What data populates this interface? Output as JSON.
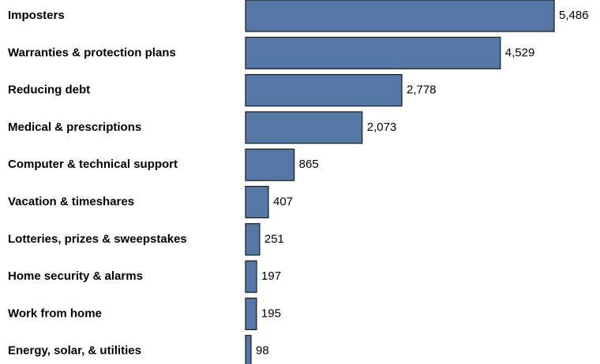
{
  "chart_data": {
    "type": "bar",
    "orientation": "horizontal",
    "categories": [
      "Imposters",
      "Warranties & protection plans",
      "Reducing debt",
      "Medical & prescriptions",
      "Computer & technical support",
      "Vacation & timeshares",
      "Lotteries, prizes & sweepstakes",
      "Home security & alarms",
      "Work from home",
      "Energy, solar, & utilities"
    ],
    "values": [
      5486,
      4529,
      2778,
      2073,
      865,
      407,
      251,
      197,
      195,
      98
    ],
    "value_labels": [
      "5,486",
      "4,529",
      "2,778",
      "2,073",
      "865",
      "407",
      "251",
      "197",
      "195",
      "98"
    ],
    "color": "#5577a6"
  }
}
